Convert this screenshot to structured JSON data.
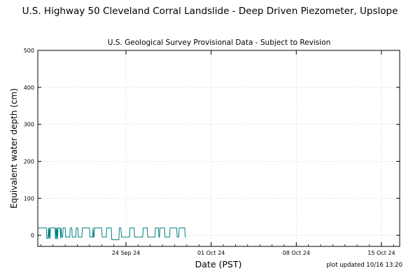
{
  "chart_data": {
    "type": "line",
    "title": "U.S. Highway 50 Cleveland Corral Landslide - Deep Driven Piezometer, Upslope",
    "subtitle": "U.S. Geological Survey Provisional Data - Subject to Revision",
    "xlabel": "Date (PST)",
    "ylabel": "Equivalent water depth (cm)",
    "footer": "plot updated 10/16 13:20",
    "xlim": [
      "2024-09-16T18:00",
      "2024-10-16T12:00"
    ],
    "ylim": [
      -30,
      500
    ],
    "yticks": [
      0,
      100,
      200,
      300,
      400,
      500
    ],
    "xticks": [
      {
        "date": "2024-09-24",
        "label": "24 Sep 24"
      },
      {
        "date": "2024-10-01",
        "label": "01 Oct 24"
      },
      {
        "date": "2024-10-08",
        "label": "08 Oct 24"
      },
      {
        "date": "2024-10-15",
        "label": "15 Oct 24"
      }
    ],
    "grid": true,
    "series": [
      {
        "color": "#008080",
        "x": [
          "2024-09-16T18:00",
          "2024-09-17T11:00",
          "2024-09-17T11:30",
          "2024-09-17T14:00",
          "2024-09-17T15:00",
          "2024-09-17T16:00",
          "2024-09-17T17:00",
          "2024-09-17T18:00",
          "2024-09-17T19:00",
          "2024-09-17T20:00",
          "2024-09-17T22:00",
          "2024-09-18T04:00",
          "2024-09-18T05:00",
          "2024-09-18T06:00",
          "2024-09-18T07:00",
          "2024-09-18T08:00",
          "2024-09-18T09:00",
          "2024-09-18T10:00",
          "2024-09-18T14:00",
          "2024-09-18T15:00",
          "2024-09-18T16:00",
          "2024-09-18T17:00",
          "2024-09-18T19:00",
          "2024-09-18T20:00",
          "2024-09-19T00:00",
          "2024-09-19T01:00",
          "2024-09-19T09:00",
          "2024-09-19T10:00",
          "2024-09-19T13:00",
          "2024-09-19T14:00",
          "2024-09-19T21:00",
          "2024-09-19T22:00",
          "2024-09-20T01:00",
          "2024-09-20T02:00",
          "2024-09-20T09:00",
          "2024-09-20T10:00",
          "2024-09-21T00:00",
          "2024-09-21T01:00",
          "2024-09-21T06:00",
          "2024-09-21T07:00",
          "2024-09-21T08:00",
          "2024-09-21T09:00",
          "2024-09-21T10:00",
          "2024-09-22T00:00",
          "2024-09-22T01:00",
          "2024-09-22T09:00",
          "2024-09-22T10:00",
          "2024-09-22T19:00",
          "2024-09-22T20:00",
          "2024-09-23T10:00",
          "2024-09-23T11:00",
          "2024-09-23T14:00",
          "2024-09-23T15:00",
          "2024-09-24T07:00",
          "2024-09-24T08:00",
          "2024-09-24T16:00",
          "2024-09-24T17:00",
          "2024-09-25T09:00",
          "2024-09-25T10:00",
          "2024-09-25T18:00",
          "2024-09-25T19:00",
          "2024-09-26T09:00",
          "2024-09-26T10:00",
          "2024-09-26T16:00",
          "2024-09-26T17:00",
          "2024-09-26T18:00",
          "2024-09-26T19:00",
          "2024-09-27T04:00",
          "2024-09-27T05:00",
          "2024-09-27T14:00",
          "2024-09-27T15:00",
          "2024-09-28T04:00",
          "2024-09-28T05:00",
          "2024-09-28T08:00",
          "2024-09-28T09:00",
          "2024-09-28T20:00",
          "2024-09-28T21:00",
          "2024-09-28T22:00"
        ],
        "y": [
          20,
          20,
          -8,
          -8,
          20,
          -8,
          20,
          -10,
          20,
          20,
          20,
          20,
          -10,
          20,
          -10,
          20,
          -10,
          20,
          20,
          -8,
          20,
          -5,
          -5,
          20,
          20,
          -5,
          -5,
          20,
          20,
          -5,
          -5,
          20,
          20,
          -5,
          -5,
          20,
          20,
          -5,
          -5,
          20,
          -5,
          -5,
          20,
          20,
          -5,
          -5,
          20,
          20,
          -12,
          -12,
          20,
          20,
          -5,
          -5,
          20,
          20,
          -5,
          -5,
          20,
          20,
          -5,
          -5,
          20,
          20,
          -5,
          -5,
          20,
          20,
          -5,
          -5,
          20,
          20,
          -5,
          -5,
          20,
          20,
          -5,
          -5
        ]
      }
    ]
  }
}
